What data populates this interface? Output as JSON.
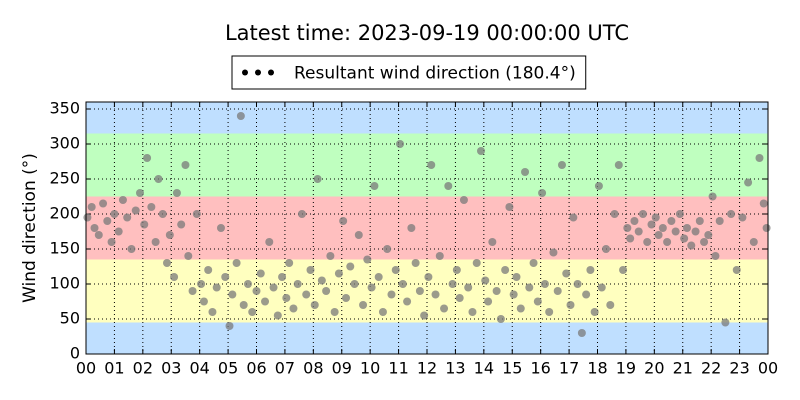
{
  "chart_data": {
    "type": "scatter",
    "title": "Latest time: 2023-09-19 00:00:00 UTC",
    "y_label": "Wind direction (°)",
    "xlim": [
      0,
      24
    ],
    "ylim": [
      0,
      360
    ],
    "xticks": [
      {
        "value": 0,
        "label": "00"
      },
      {
        "value": 1,
        "label": "01"
      },
      {
        "value": 2,
        "label": "02"
      },
      {
        "value": 3,
        "label": "03"
      },
      {
        "value": 4,
        "label": "04"
      },
      {
        "value": 5,
        "label": "05"
      },
      {
        "value": 6,
        "label": "06"
      },
      {
        "value": 7,
        "label": "07"
      },
      {
        "value": 8,
        "label": "08"
      },
      {
        "value": 9,
        "label": "09"
      },
      {
        "value": 10,
        "label": "10"
      },
      {
        "value": 11,
        "label": "11"
      },
      {
        "value": 12,
        "label": "12"
      },
      {
        "value": 13,
        "label": "13"
      },
      {
        "value": 14,
        "label": "14"
      },
      {
        "value": 15,
        "label": "15"
      },
      {
        "value": 16,
        "label": "16"
      },
      {
        "value": 17,
        "label": "17"
      },
      {
        "value": 18,
        "label": "18"
      },
      {
        "value": 19,
        "label": "19"
      },
      {
        "value": 20,
        "label": "20"
      },
      {
        "value": 21,
        "label": "21"
      },
      {
        "value": 22,
        "label": "22"
      },
      {
        "value": 23,
        "label": "23"
      },
      {
        "value": 24,
        "label": "00"
      }
    ],
    "yticks": [
      0,
      50,
      100,
      150,
      200,
      250,
      300,
      350
    ],
    "grid": true,
    "bands": [
      {
        "from": 0,
        "to": 45,
        "color": "#bfdfff"
      },
      {
        "from": 45,
        "to": 135,
        "color": "#ffffbf"
      },
      {
        "from": 135,
        "to": 225,
        "color": "#ffbfbf"
      },
      {
        "from": 225,
        "to": 315,
        "color": "#bfffbf"
      },
      {
        "from": 315,
        "to": 360,
        "color": "#bfdfff"
      }
    ],
    "legend": "top-center",
    "legend_marker_color": "#000000",
    "series": [
      {
        "name": "Resultant wind direction (180.4°)",
        "color": "#7a7a7a",
        "x": [
          0.05,
          0.2,
          0.3,
          0.45,
          0.6,
          0.75,
          0.9,
          1.0,
          1.15,
          1.3,
          1.45,
          1.6,
          1.75,
          1.9,
          2.05,
          2.15,
          2.3,
          2.45,
          2.55,
          2.7,
          2.85,
          2.95,
          3.1,
          3.2,
          3.35,
          3.5,
          3.6,
          3.75,
          3.9,
          4.05,
          4.15,
          4.3,
          4.45,
          4.6,
          4.75,
          4.9,
          5.05,
          5.15,
          5.3,
          5.45,
          5.55,
          5.7,
          5.85,
          6.0,
          6.15,
          6.3,
          6.45,
          6.6,
          6.75,
          6.9,
          7.05,
          7.15,
          7.3,
          7.45,
          7.6,
          7.75,
          7.9,
          8.05,
          8.15,
          8.3,
          8.45,
          8.6,
          8.75,
          8.9,
          9.05,
          9.15,
          9.3,
          9.45,
          9.6,
          9.75,
          9.9,
          10.05,
          10.15,
          10.3,
          10.45,
          10.6,
          10.75,
          10.9,
          11.05,
          11.15,
          11.3,
          11.45,
          11.6,
          11.75,
          11.9,
          12.05,
          12.15,
          12.3,
          12.45,
          12.6,
          12.75,
          12.9,
          13.05,
          13.15,
          13.3,
          13.45,
          13.6,
          13.75,
          13.9,
          14.05,
          14.15,
          14.3,
          14.45,
          14.6,
          14.75,
          14.9,
          15.05,
          15.15,
          15.3,
          15.45,
          15.6,
          15.75,
          15.9,
          16.05,
          16.15,
          16.3,
          16.45,
          16.6,
          16.75,
          16.9,
          17.05,
          17.15,
          17.3,
          17.45,
          17.6,
          17.75,
          17.9,
          18.05,
          18.15,
          18.3,
          18.45,
          18.6,
          18.75,
          18.9,
          19.05,
          19.15,
          19.3,
          19.45,
          19.6,
          19.75,
          19.9,
          20.05,
          20.15,
          20.3,
          20.45,
          20.6,
          20.75,
          20.9,
          21.05,
          21.15,
          21.3,
          21.45,
          21.6,
          21.75,
          21.9,
          22.05,
          22.15,
          22.3,
          22.5,
          22.7,
          22.9,
          23.1,
          23.3,
          23.5,
          23.7,
          23.85,
          23.95
        ],
        "values": [
          195,
          210,
          180,
          170,
          215,
          190,
          160,
          200,
          175,
          220,
          195,
          150,
          205,
          230,
          185,
          280,
          210,
          160,
          250,
          200,
          130,
          170,
          110,
          230,
          185,
          270,
          140,
          90,
          200,
          100,
          75,
          120,
          60,
          95,
          180,
          110,
          40,
          85,
          130,
          340,
          70,
          100,
          60,
          90,
          115,
          75,
          160,
          95,
          55,
          110,
          80,
          130,
          65,
          100,
          200,
          85,
          120,
          70,
          250,
          105,
          90,
          140,
          60,
          115,
          190,
          80,
          125,
          100,
          170,
          70,
          135,
          95,
          240,
          110,
          60,
          150,
          85,
          120,
          300,
          100,
          75,
          180,
          130,
          90,
          55,
          110,
          270,
          85,
          140,
          65,
          240,
          100,
          120,
          80,
          220,
          95,
          60,
          130,
          290,
          105,
          75,
          160,
          90,
          50,
          120,
          210,
          85,
          110,
          65,
          260,
          95,
          130,
          75,
          230,
          100,
          60,
          145,
          90,
          270,
          115,
          70,
          195,
          100,
          30,
          85,
          120,
          60,
          240,
          95,
          150,
          70,
          200,
          270,
          120,
          180,
          165,
          190,
          175,
          200,
          160,
          185,
          195,
          170,
          180,
          160,
          190,
          175,
          200,
          165,
          180,
          155,
          175,
          190,
          160,
          170,
          225,
          140,
          190,
          45,
          200,
          120,
          195,
          245,
          160,
          280,
          215,
          180
        ]
      }
    ]
  }
}
